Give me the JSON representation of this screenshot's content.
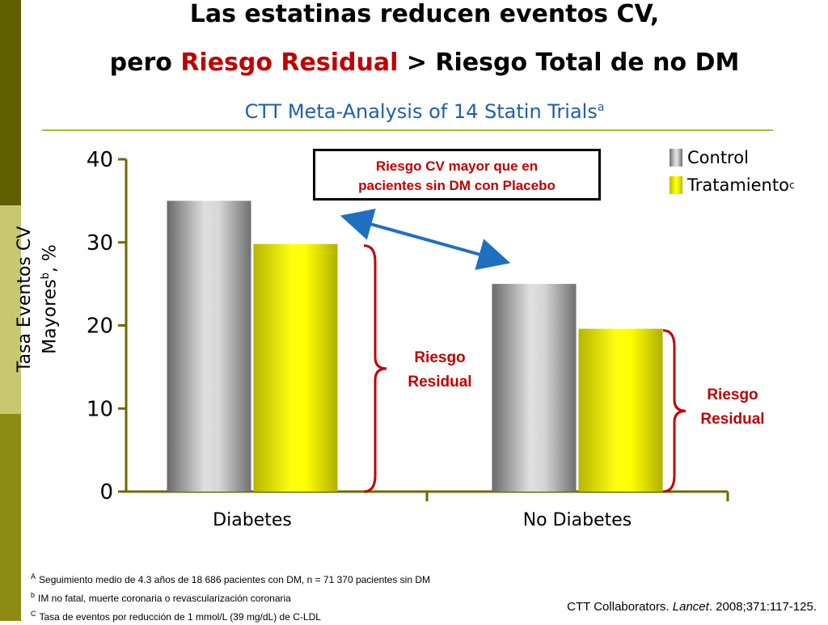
{
  "title_line1": "Las estatinas reducen eventos CV,",
  "title_line2_a": "pero ",
  "title_line2_red": "Riesgo Residual",
  "title_line2_b": " > Riesgo Total de no DM",
  "subtitle": "CTT Meta-Analysis of 14 Statin Trials",
  "subtitle_sup": "a",
  "annotation_box": {
    "line1": "Riesgo CV mayor que en",
    "line2": "pacientes sin DM con Placebo"
  },
  "residual_label": {
    "line1": "Riesgo",
    "line2": "Residual"
  },
  "colors": {
    "accent_red": "#c00000",
    "subtitle_blue": "#1f5fa8",
    "axis": "#6b6b00",
    "arrow": "#1f6fc0"
  },
  "chart_data": {
    "type": "bar",
    "categories": [
      "Diabetes",
      "No Diabetes"
    ],
    "series": [
      {
        "name": "Control",
        "values": [
          35,
          25
        ],
        "color": "#9a9a9a"
      },
      {
        "name": "Tratamiento",
        "values": [
          29.8,
          19.6
        ],
        "color": "#ffff00"
      }
    ],
    "legend_sup": [
      "",
      "c"
    ],
    "ylabel_line1": "Tasa Eventos CV",
    "ylabel_line2": "Mayores",
    "ylabel_sup": "b",
    "ylabel_unit": ", %",
    "yticks": [
      0,
      10,
      20,
      30,
      40
    ],
    "ylim": [
      0,
      40
    ],
    "legend_position": "top-right",
    "grid": false
  },
  "footnotes": [
    {
      "sup": "A",
      "text": "Seguimiento medio de 4.3 años de 18 686 pacientes con DM, n = 71 370 pacientes sin DM"
    },
    {
      "sup": "b",
      "text": "IM no fatal, muerte coronaria o revascularización coronaria"
    },
    {
      "sup": "C",
      "text": "Tasa de eventos por reducción de 1 mmol/L (39 mg/dL) de C-LDL"
    }
  ],
  "citation": {
    "authors": "CTT Collaborators. ",
    "journal": "Lancet",
    "rest": ". 2008;371:117-125."
  }
}
